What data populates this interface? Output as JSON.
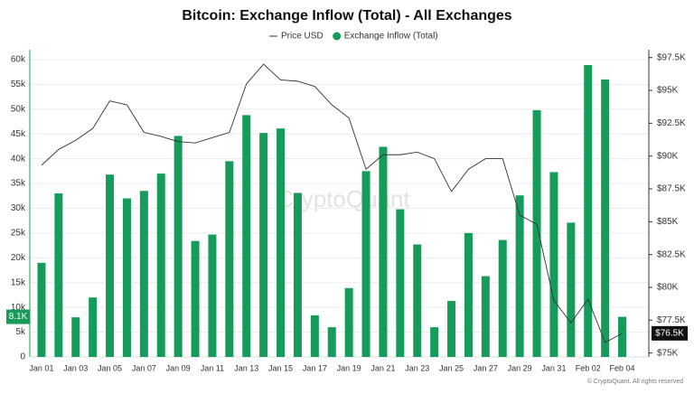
{
  "chart_data": {
    "type": "bar-line",
    "title": "Bitcoin: Exchange Inflow (Total) - All Exchanges",
    "watermark": "CryptoQuant",
    "footer": "© CryptoQuant. All rights reserved",
    "categories": [
      "Jan 01",
      null,
      "Jan 03",
      null,
      "Jan 05",
      null,
      "Jan 07",
      null,
      "Jan 09",
      null,
      "Jan 11",
      null,
      "Jan 13",
      null,
      "Jan 15",
      null,
      "Jan 17",
      null,
      "Jan 19",
      null,
      "Jan 21",
      null,
      "Jan 23",
      null,
      "Jan 25",
      null,
      "Jan 27",
      null,
      "Jan 29",
      null,
      "Jan 31",
      null,
      "Feb 02",
      null,
      "Feb 04"
    ],
    "series": [
      {
        "name": "Price USD",
        "type": "line",
        "axis": "y2",
        "color": "#333333",
        "last_value_label": "$76.5K",
        "values": [
          89300,
          90500,
          91200,
          92100,
          94200,
          93900,
          91800,
          91500,
          91100,
          91000,
          91400,
          91800,
          95500,
          97000,
          95800,
          95700,
          95300,
          93900,
          92900,
          89000,
          90100,
          90100,
          90300,
          89800,
          87300,
          89000,
          89800,
          89800,
          85500,
          84800,
          79000,
          77300,
          79100,
          75800,
          76500
        ]
      },
      {
        "name": "Exchange Inflow (Total)",
        "type": "bar",
        "color": "#169c5a",
        "last_value_label": "8.1K",
        "values": [
          19000,
          33000,
          8000,
          12000,
          36800,
          32000,
          33500,
          37000,
          44600,
          23400,
          24700,
          39500,
          48800,
          45200,
          46100,
          33100,
          8400,
          6000,
          13900,
          37500,
          42400,
          29800,
          22700,
          6000,
          11300,
          25000,
          16300,
          23600,
          32600,
          49800,
          37300,
          27100,
          58900,
          56000,
          8100
        ]
      }
    ],
    "ylim": [
      0,
      62000
    ],
    "yticks": [
      0,
      {
        "value": 5000,
        "label": "5k"
      },
      {
        "value": 10000,
        "label": "10k"
      },
      {
        "value": 15000,
        "label": "15k"
      },
      {
        "value": 20000,
        "label": "20k"
      },
      {
        "value": 25000,
        "label": "25k"
      },
      {
        "value": 30000,
        "label": "30k"
      },
      {
        "value": 35000,
        "label": "35k"
      },
      {
        "value": 40000,
        "label": "40k"
      },
      {
        "value": 45000,
        "label": "45k"
      },
      {
        "value": 50000,
        "label": "50k"
      },
      {
        "value": 55000,
        "label": "55k"
      },
      {
        "value": 60000,
        "label": "60k"
      }
    ],
    "y2lim": [
      74700,
      98100
    ],
    "y2ticks": [
      {
        "value": 75000,
        "label": "$75K"
      },
      {
        "value": 77500,
        "label": "$77.5K"
      },
      {
        "value": 80000,
        "label": "$80K"
      },
      {
        "value": 82500,
        "label": "$82.5K"
      },
      {
        "value": 85000,
        "label": "$85K"
      },
      {
        "value": 87500,
        "label": "$87.5K"
      },
      {
        "value": 90000,
        "label": "$90K"
      },
      {
        "value": 92500,
        "label": "$92.5K"
      },
      {
        "value": 95000,
        "label": "$95K"
      },
      {
        "value": 97500,
        "label": "$97.5K"
      }
    ],
    "grid": true
  }
}
